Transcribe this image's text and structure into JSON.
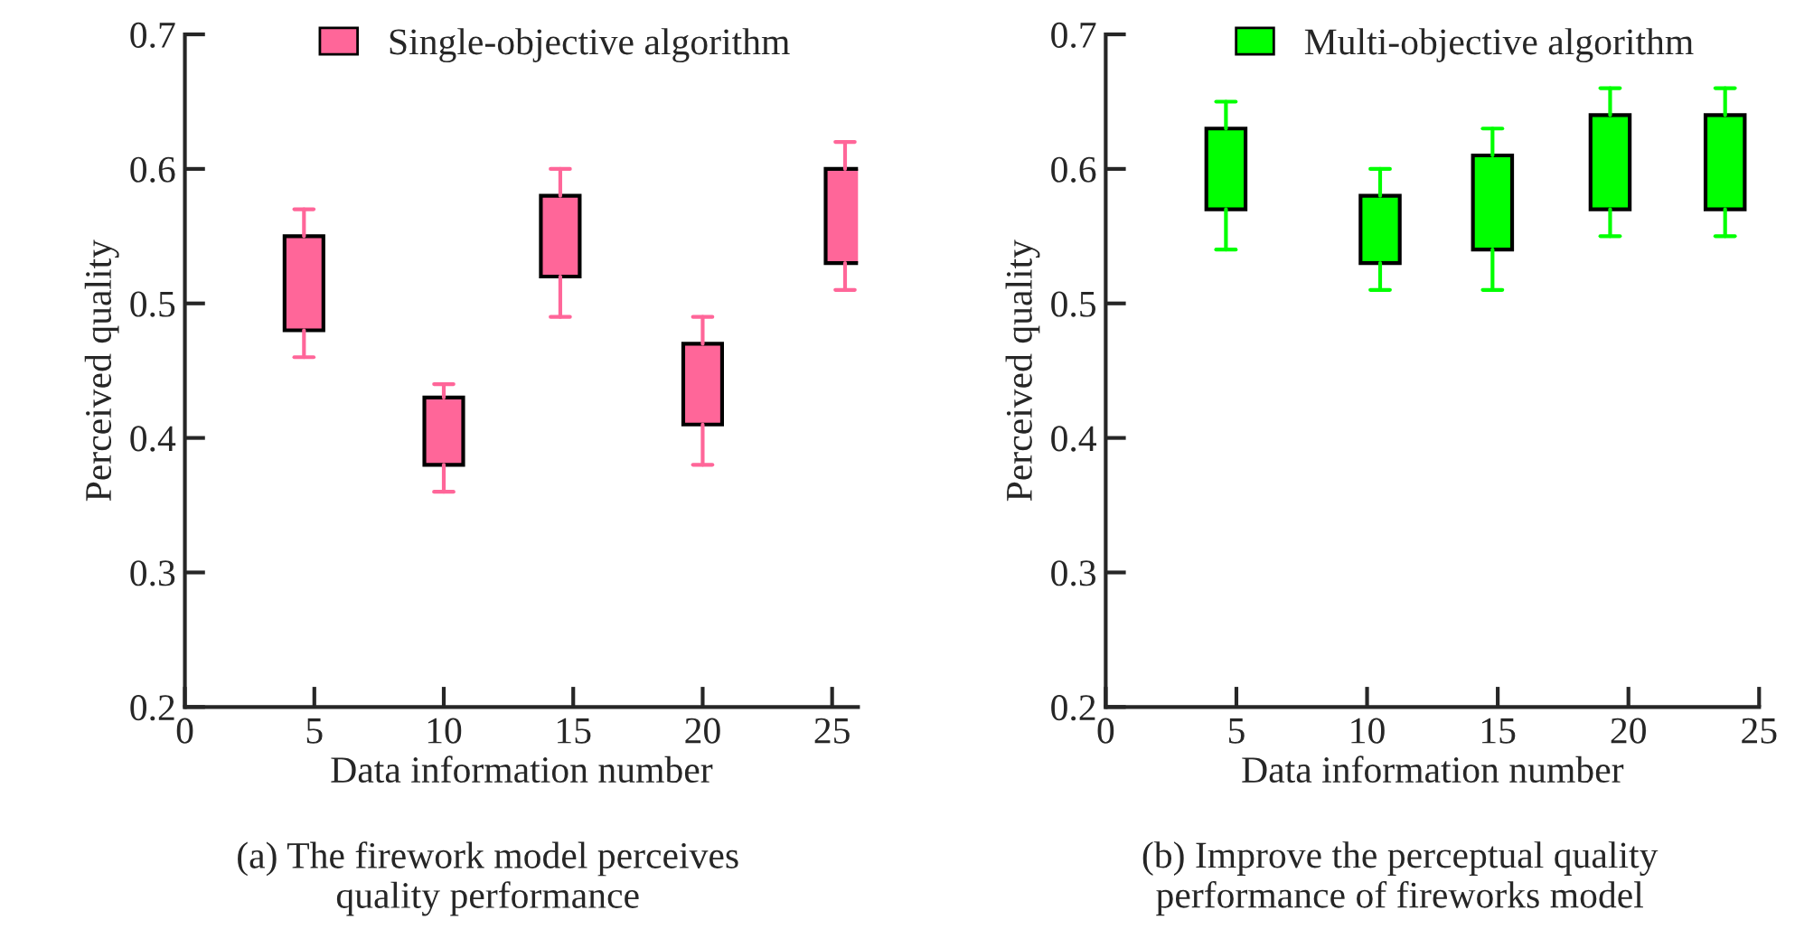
{
  "chart_data": [
    {
      "type": "box",
      "xlabel": "Data information number",
      "ylabel": "Perceived quality",
      "xlim": [
        0,
        26
      ],
      "xticks": [
        0,
        5,
        10,
        15,
        20,
        25
      ],
      "ylim": [
        0.2,
        0.7
      ],
      "yticks": [
        0.2,
        0.3,
        0.4,
        0.5,
        0.6,
        0.7
      ],
      "legend": "top",
      "grid": false,
      "annotations": [
        "(a) The firework model perceives\nquality performance"
      ],
      "series": [
        {
          "name": "Single-objective algorithm",
          "color": "#ff6699",
          "x": [
            4.6,
            10,
            14.5,
            20,
            25.5
          ],
          "boxes": [
            {
              "low": 0.46,
              "q1": 0.48,
              "q3": 0.55,
              "high": 0.57
            },
            {
              "low": 0.36,
              "q1": 0.38,
              "q3": 0.43,
              "high": 0.44
            },
            {
              "low": 0.49,
              "q1": 0.52,
              "q3": 0.58,
              "high": 0.6
            },
            {
              "low": 0.38,
              "q1": 0.41,
              "q3": 0.47,
              "high": 0.49
            },
            {
              "low": 0.51,
              "q1": 0.53,
              "q3": 0.6,
              "high": 0.62
            }
          ]
        }
      ]
    },
    {
      "type": "box",
      "xlabel": "Data information number",
      "ylabel": "Perceived quality",
      "xlim": [
        0,
        25
      ],
      "xticks": [
        0,
        5,
        10,
        15,
        20,
        25
      ],
      "ylim": [
        0.2,
        0.7
      ],
      "yticks": [
        0.2,
        0.3,
        0.4,
        0.5,
        0.6,
        0.7
      ],
      "legend": "top",
      "grid": false,
      "annotations": [
        "(b) Improve the perceptual quality\nperformance of fireworks model"
      ],
      "series": [
        {
          "name": "Multi-objective algorithm",
          "color": "#00ff00",
          "x": [
            4.6,
            10.5,
            14.8,
            19.3,
            23.7
          ],
          "boxes": [
            {
              "low": 0.54,
              "q1": 0.57,
              "q3": 0.63,
              "high": 0.65
            },
            {
              "low": 0.51,
              "q1": 0.53,
              "q3": 0.58,
              "high": 0.6
            },
            {
              "low": 0.51,
              "q1": 0.54,
              "q3": 0.61,
              "high": 0.63
            },
            {
              "low": 0.55,
              "q1": 0.57,
              "q3": 0.64,
              "high": 0.66
            },
            {
              "low": 0.55,
              "q1": 0.57,
              "q3": 0.64,
              "high": 0.66
            }
          ]
        }
      ]
    }
  ]
}
